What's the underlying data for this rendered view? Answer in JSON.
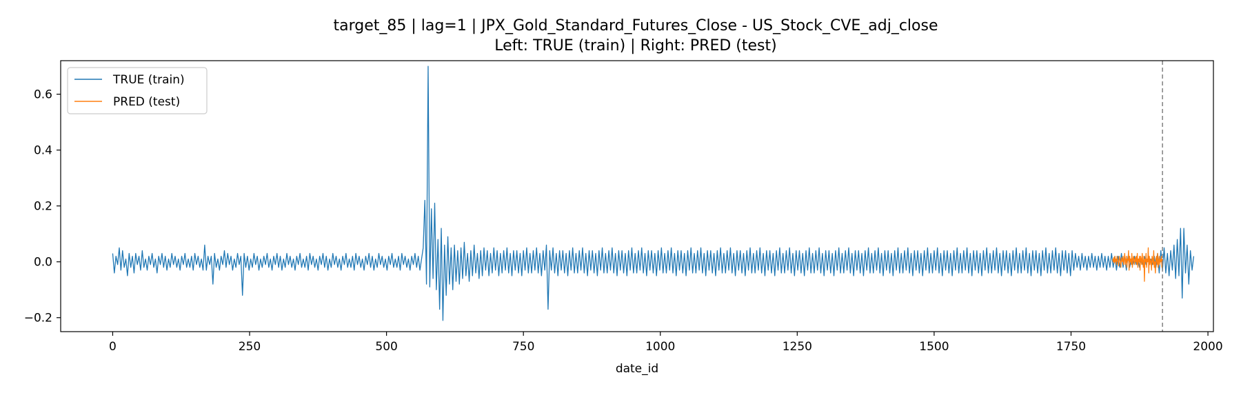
{
  "chart_data": {
    "type": "line",
    "title": "target_85 | lag=1 | JPX_Gold_Standard_Futures_Close - US_Stock_CVE_adj_close",
    "subtitle": "Left: TRUE (train) | Right: PRED (test)",
    "xlabel": "date_id",
    "ylabel": "",
    "xlim": [
      -95,
      2010
    ],
    "ylim": [
      -0.25,
      0.72
    ],
    "xticks": [
      0,
      250,
      500,
      750,
      1000,
      1250,
      1500,
      1750,
      2000
    ],
    "yticks": [
      -0.2,
      0.0,
      0.2,
      0.4,
      0.6
    ],
    "ytick_labels": [
      "−0.2",
      "0.0",
      "0.2",
      "0.4",
      "0.6"
    ],
    "grid": false,
    "legend": {
      "position": "upper-left"
    },
    "vline": {
      "x": 1917,
      "style": "dashed",
      "color": "#808080"
    },
    "series": [
      {
        "name": "TRUE (train)",
        "color": "#1f77b4",
        "x_start": 0,
        "x_step": 3,
        "values": [
          0.03,
          -0.04,
          0.02,
          -0.01,
          0.05,
          -0.03,
          0.04,
          -0.02,
          0.01,
          -0.05,
          0.03,
          -0.02,
          0.02,
          -0.04,
          0.03,
          -0.01,
          0.02,
          -0.03,
          0.04,
          -0.02,
          0.01,
          -0.03,
          0.02,
          -0.01,
          0.03,
          -0.02,
          0.01,
          -0.04,
          0.02,
          -0.01,
          0.03,
          -0.02,
          0.02,
          -0.03,
          0.01,
          -0.02,
          0.03,
          -0.01,
          0.02,
          -0.02,
          0.01,
          -0.03,
          0.02,
          -0.01,
          0.03,
          -0.02,
          0.01,
          -0.02,
          0.02,
          -0.03,
          0.03,
          -0.01,
          0.02,
          -0.02,
          0.01,
          -0.03,
          0.06,
          -0.03,
          0.02,
          -0.01,
          0.02,
          -0.08,
          0.03,
          -0.02,
          0.01,
          -0.03,
          0.02,
          -0.01,
          0.04,
          -0.02,
          0.03,
          -0.01,
          0.02,
          -0.03,
          0.01,
          -0.02,
          0.03,
          -0.01,
          0.02,
          -0.12,
          0.03,
          -0.02,
          0.02,
          -0.03,
          0.01,
          -0.02,
          0.03,
          -0.01,
          0.02,
          -0.03,
          0.01,
          -0.02,
          0.02,
          -0.01,
          0.03,
          -0.02,
          0.01,
          -0.03,
          0.02,
          -0.01,
          0.03,
          -0.02,
          0.02,
          -0.03,
          0.01,
          -0.02,
          0.03,
          -0.01,
          0.02,
          -0.02,
          0.01,
          -0.03,
          0.02,
          -0.01,
          0.03,
          -0.02,
          0.01,
          -0.02,
          0.02,
          -0.03,
          0.03,
          -0.01,
          0.02,
          -0.02,
          0.01,
          -0.03,
          0.02,
          -0.01,
          0.03,
          -0.02,
          0.02,
          -0.03,
          0.01,
          -0.02,
          0.03,
          -0.01,
          0.02,
          -0.02,
          0.01,
          -0.03,
          0.02,
          -0.01,
          0.03,
          -0.02,
          0.01,
          -0.02,
          0.02,
          -0.03,
          0.03,
          -0.01,
          0.02,
          -0.02,
          0.01,
          -0.03,
          0.02,
          -0.01,
          0.03,
          -0.02,
          0.02,
          -0.03,
          0.01,
          -0.02,
          0.03,
          -0.01,
          0.02,
          -0.02,
          0.01,
          -0.03,
          0.02,
          -0.01,
          0.03,
          -0.02,
          0.01,
          -0.02,
          0.02,
          -0.03,
          0.03,
          -0.01,
          0.02,
          -0.02,
          0.01,
          -0.03,
          0.02,
          -0.01,
          0.03,
          -0.02,
          0.02,
          -0.03,
          0.01,
          0.05,
          0.22,
          -0.08,
          0.7,
          -0.09,
          0.19,
          -0.06,
          0.21,
          -0.1,
          0.08,
          -0.17,
          0.12,
          -0.21,
          0.06,
          -0.12,
          0.09,
          -0.08,
          0.05,
          -0.1,
          0.06,
          -0.07,
          0.04,
          -0.08,
          0.05,
          -0.06,
          0.07,
          -0.05,
          0.03,
          -0.07,
          0.04,
          -0.05,
          0.06,
          -0.04,
          0.03,
          -0.06,
          0.04,
          -0.05,
          0.05,
          -0.03,
          0.04,
          -0.05,
          0.03,
          -0.04,
          0.05,
          -0.03,
          0.04,
          -0.05,
          0.03,
          -0.04,
          0.04,
          -0.03,
          0.05,
          -0.04,
          0.03,
          -0.05,
          0.04,
          -0.03,
          0.04,
          -0.04,
          0.03,
          -0.05,
          0.04,
          -0.03,
          0.05,
          -0.04,
          0.03,
          -0.04,
          0.04,
          -0.03,
          0.05,
          -0.04,
          0.03,
          -0.05,
          0.04,
          -0.03,
          0.06,
          -0.17,
          0.04,
          -0.03,
          0.05,
          -0.04,
          0.03,
          -0.05,
          0.04,
          -0.03,
          0.04,
          -0.04,
          0.03,
          -0.05,
          0.04,
          -0.03,
          0.05,
          -0.04,
          0.03,
          -0.04,
          0.04,
          -0.03,
          0.05,
          -0.04,
          0.03,
          -0.05,
          0.04,
          -0.03,
          0.04,
          -0.04,
          0.03,
          -0.05,
          0.04,
          -0.03,
          0.05,
          -0.04,
          0.03,
          -0.04,
          0.04,
          -0.03,
          0.05,
          -0.04,
          0.03,
          -0.05,
          0.04,
          -0.03,
          0.04,
          -0.04,
          0.03,
          -0.05,
          0.04,
          -0.03,
          0.05,
          -0.04,
          0.03,
          -0.04,
          0.04,
          -0.03,
          0.05,
          -0.04,
          0.03,
          -0.05,
          0.04,
          -0.03,
          0.04,
          -0.04,
          0.03,
          -0.05,
          0.04,
          -0.03,
          0.05,
          -0.04,
          0.03,
          -0.04,
          0.04,
          -0.03,
          0.05,
          -0.04,
          0.03,
          -0.05,
          0.04,
          -0.03,
          0.04,
          -0.04,
          0.03,
          -0.05,
          0.04,
          -0.03,
          0.05,
          -0.04,
          0.03,
          -0.04,
          0.04,
          -0.03,
          0.05,
          -0.04,
          0.03,
          -0.05,
          0.04,
          -0.03,
          0.04,
          -0.04,
          0.03,
          -0.05,
          0.04,
          -0.03,
          0.05,
          -0.04,
          0.03,
          -0.04,
          0.04,
          -0.03,
          0.05,
          -0.04,
          0.03,
          -0.05,
          0.04,
          -0.03,
          0.04,
          -0.04,
          0.03,
          -0.05,
          0.04,
          -0.03,
          0.05,
          -0.04,
          0.03,
          -0.04,
          0.04,
          -0.03,
          0.05,
          -0.04,
          0.03,
          -0.05,
          0.04,
          -0.03,
          0.04,
          -0.04,
          0.03,
          -0.05,
          0.04,
          -0.03,
          0.05,
          -0.04,
          0.03,
          -0.04,
          0.04,
          -0.03,
          0.05,
          -0.04,
          0.03,
          -0.05,
          0.04,
          -0.03,
          0.04,
          -0.04,
          0.03,
          -0.05,
          0.04,
          -0.03,
          0.05,
          -0.04,
          0.03,
          -0.04,
          0.04,
          -0.03,
          0.05,
          -0.04,
          0.03,
          -0.05,
          0.04,
          -0.03,
          0.04,
          -0.04,
          0.03,
          -0.05,
          0.04,
          -0.03,
          0.05,
          -0.04,
          0.03,
          -0.04,
          0.04,
          -0.03,
          0.05,
          -0.04,
          0.03,
          -0.05,
          0.04,
          -0.03,
          0.04,
          -0.04,
          0.03,
          -0.05,
          0.04,
          -0.03,
          0.05,
          -0.04,
          0.03,
          -0.04,
          0.04,
          -0.03,
          0.05,
          -0.04,
          0.03,
          -0.05,
          0.04,
          -0.03,
          0.04,
          -0.04,
          0.03,
          -0.05,
          0.04,
          -0.03,
          0.05,
          -0.04,
          0.03,
          -0.04,
          0.04,
          -0.03,
          0.05,
          -0.04,
          0.03,
          -0.05,
          0.04,
          -0.03,
          0.04,
          -0.04,
          0.03,
          -0.05,
          0.04,
          -0.03,
          0.05,
          -0.04,
          0.03,
          -0.04,
          0.04,
          -0.03,
          0.05,
          -0.04,
          0.03,
          -0.05,
          0.04,
          -0.03,
          0.04,
          -0.04,
          0.03,
          -0.05,
          0.04,
          -0.03,
          0.05,
          -0.04,
          0.03,
          -0.04,
          0.04,
          -0.03,
          0.05,
          -0.04,
          0.03,
          -0.05,
          0.04,
          -0.03,
          0.04,
          -0.04,
          0.03,
          -0.05,
          0.04,
          -0.03,
          0.05,
          -0.04,
          0.03,
          -0.04,
          0.04,
          -0.03,
          0.05,
          -0.04,
          0.03,
          -0.05,
          0.04,
          -0.03,
          0.04,
          -0.04,
          0.03,
          -0.05,
          0.04,
          -0.03,
          0.05,
          -0.04,
          0.03,
          -0.04,
          0.04,
          -0.03,
          0.05,
          -0.04,
          0.03,
          -0.05,
          0.04,
          -0.03,
          0.04,
          -0.04,
          0.03,
          -0.05,
          0.04,
          -0.03,
          0.05,
          -0.04,
          0.03,
          -0.04,
          0.04,
          -0.03,
          0.05,
          -0.04,
          0.03,
          -0.05,
          0.04,
          -0.03,
          0.04,
          -0.04,
          0.03,
          -0.05,
          0.04,
          -0.03,
          0.03,
          -0.02,
          0.02,
          -0.03,
          0.03,
          -0.02,
          0.02,
          -0.03,
          0.02,
          -0.02,
          0.03,
          -0.02,
          0.02,
          -0.03,
          0.02,
          -0.02,
          0.03,
          -0.02,
          0.02,
          -0.03,
          0.02,
          -0.02,
          0.03,
          -0.02,
          0.02,
          -0.03,
          0.02,
          -0.02,
          0.03,
          -0.02,
          0.02,
          -0.03,
          0.02,
          -0.02,
          0.01,
          -0.01,
          0.02,
          -0.01,
          0.01,
          -0.02,
          0.01,
          -0.01,
          0.02,
          -0.01,
          0.01,
          0.0,
          0.01,
          -0.01,
          0.02,
          -0.02,
          0.03,
          -0.04,
          0.04,
          -0.03,
          0.05,
          -0.04,
          0.03,
          -0.05,
          0.04,
          -0.03,
          0.06,
          -0.06,
          0.08,
          -0.05,
          0.12,
          -0.13,
          0.12,
          -0.04,
          0.06,
          -0.08,
          0.04,
          -0.03,
          0.02
        ]
      },
      {
        "name": "PRED (test)",
        "color": "#ff7f0e",
        "x_start": 1826,
        "x_step": 1,
        "values": [
          0.01,
          0.0,
          0.015,
          -0.005,
          0.02,
          0.0,
          0.01,
          -0.01,
          0.02,
          0.005,
          0.0,
          -0.015,
          0.02,
          0.01,
          0.0,
          -0.02,
          0.015,
          0.005,
          0.0,
          0.02,
          -0.01,
          0.01,
          0.03,
          -0.01,
          0.0,
          0.02,
          -0.02,
          0.01,
          0.005,
          0.04,
          -0.03,
          0.02,
          0.0,
          0.01,
          -0.01,
          0.03,
          -0.02,
          0.01,
          0.02,
          0.0,
          -0.01,
          0.015,
          0.0,
          0.02,
          -0.01,
          0.03,
          -0.02,
          0.01,
          0.0,
          0.02,
          -0.03,
          0.02,
          0.01,
          -0.01,
          0.03,
          0.0,
          -0.02,
          0.02,
          -0.07,
          0.01,
          0.0,
          0.03,
          -0.02,
          0.01,
          0.0,
          0.05,
          -0.04,
          0.02,
          -0.01,
          0.01,
          0.0,
          -0.03,
          0.02,
          0.01,
          -0.01,
          0.04,
          -0.02,
          0.0,
          -0.04,
          0.01,
          0.02,
          -0.01,
          0.03,
          -0.02,
          0.0,
          0.02,
          -0.01,
          0.01,
          0.0,
          0.02,
          -0.02,
          0.01
        ]
      }
    ]
  }
}
